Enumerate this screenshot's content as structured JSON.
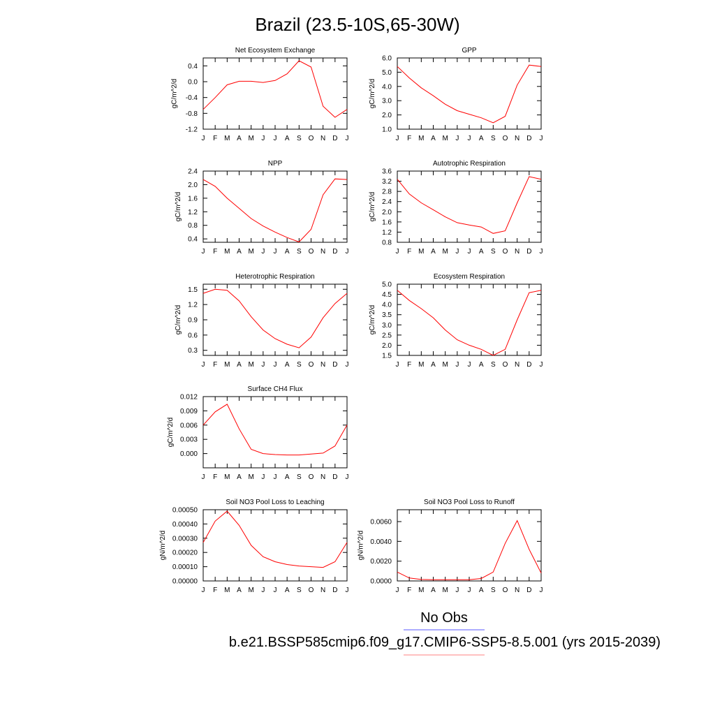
{
  "figure": {
    "title": "Brazil (23.5-10S,65-30W)",
    "legend_label": "No Obs",
    "caption": "b.e21.BSSP585cmip6.f09_g17.CMIP6-SSP5-8.5.001 (yrs 2015-2039)",
    "colors": {
      "model_line": "#ff0000",
      "legend_obs_line": "#5a5aff",
      "legend_model_line": "#ff8080",
      "axis": "#000000"
    }
  },
  "chart_data": [
    {
      "type": "line",
      "title": "Net Ecosystem Exchange",
      "ylabel": "gC/m^2/d",
      "x": [
        "J",
        "F",
        "M",
        "A",
        "M",
        "J",
        "J",
        "A",
        "S",
        "O",
        "N",
        "D",
        "J"
      ],
      "ylim": [
        -1.2,
        0.6
      ],
      "yticks": [
        "-1.2",
        "-0.8",
        "-0.4",
        "0.0",
        "0.4"
      ],
      "values": [
        -0.7,
        -0.4,
        -0.08,
        0.01,
        0.01,
        -0.02,
        0.03,
        0.2,
        0.53,
        0.37,
        -0.62,
        -0.9,
        -0.7
      ]
    },
    {
      "type": "line",
      "title": "GPP",
      "ylabel": "gC/m^2/d",
      "x": [
        "J",
        "F",
        "M",
        "A",
        "M",
        "J",
        "J",
        "A",
        "S",
        "O",
        "N",
        "D",
        "J"
      ],
      "ylim": [
        1.0,
        6.0
      ],
      "yticks": [
        "1.0",
        "2.0",
        "3.0",
        "4.0",
        "5.0",
        "6.0"
      ],
      "values": [
        5.4,
        4.6,
        3.9,
        3.35,
        2.75,
        2.3,
        2.05,
        1.8,
        1.45,
        1.9,
        4.1,
        5.5,
        5.4
      ]
    },
    {
      "type": "line",
      "title": "NPP",
      "ylabel": "gC/m^2/d",
      "x": [
        "J",
        "F",
        "M",
        "A",
        "M",
        "J",
        "J",
        "A",
        "S",
        "O",
        "N",
        "D",
        "J"
      ],
      "ylim": [
        0.3,
        2.4
      ],
      "yticks": [
        "0.4",
        "0.8",
        "1.2",
        "1.6",
        "2.0",
        "2.4"
      ],
      "values": [
        2.15,
        1.95,
        1.6,
        1.3,
        1.0,
        0.78,
        0.6,
        0.44,
        0.31,
        0.68,
        1.7,
        2.17,
        2.15
      ]
    },
    {
      "type": "line",
      "title": "Autotrophic Respiration",
      "ylabel": "gC/m^2/d",
      "x": [
        "J",
        "F",
        "M",
        "A",
        "M",
        "J",
        "J",
        "A",
        "S",
        "O",
        "N",
        "D",
        "J"
      ],
      "ylim": [
        0.8,
        3.6
      ],
      "yticks": [
        "0.8",
        "1.2",
        "1.6",
        "2.0",
        "2.4",
        "2.8",
        "3.2",
        "3.6"
      ],
      "values": [
        3.28,
        2.7,
        2.35,
        2.08,
        1.8,
        1.57,
        1.48,
        1.4,
        1.15,
        1.25,
        2.35,
        3.38,
        3.28
      ]
    },
    {
      "type": "line",
      "title": "Heterotrophic Respiration",
      "ylabel": "gC/m^2/d",
      "x": [
        "J",
        "F",
        "M",
        "A",
        "M",
        "J",
        "J",
        "A",
        "S",
        "O",
        "N",
        "D",
        "J"
      ],
      "ylim": [
        0.2,
        1.6
      ],
      "yticks": [
        "0.3",
        "0.6",
        "0.9",
        "1.2",
        "1.5"
      ],
      "values": [
        1.42,
        1.5,
        1.48,
        1.27,
        0.96,
        0.7,
        0.53,
        0.42,
        0.35,
        0.56,
        0.94,
        1.22,
        1.42
      ]
    },
    {
      "type": "line",
      "title": "Ecosystem Respiration",
      "ylabel": "gC/m^2/d",
      "x": [
        "J",
        "F",
        "M",
        "A",
        "M",
        "J",
        "J",
        "A",
        "S",
        "O",
        "N",
        "D",
        "J"
      ],
      "ylim": [
        1.5,
        5.0
      ],
      "yticks": [
        "1.5",
        "2.0",
        "2.5",
        "3.0",
        "3.5",
        "4.0",
        "4.5",
        "5.0"
      ],
      "values": [
        4.7,
        4.2,
        3.8,
        3.35,
        2.75,
        2.27,
        2.0,
        1.8,
        1.5,
        1.8,
        3.25,
        4.58,
        4.7
      ]
    },
    {
      "type": "line",
      "title": "Surface CH4 Flux",
      "ylabel": "gC/m^2/d",
      "x": [
        "J",
        "F",
        "M",
        "A",
        "M",
        "J",
        "J",
        "A",
        "S",
        "O",
        "N",
        "D",
        "J"
      ],
      "ylim": [
        -0.003,
        0.012
      ],
      "yticks": [
        "0.000",
        "0.003",
        "0.006",
        "0.009",
        "0.012"
      ],
      "values": [
        0.006,
        0.0088,
        0.0104,
        0.0052,
        0.0009,
        0.0,
        -0.0002,
        -0.0003,
        -0.0003,
        -0.0001,
        0.0001,
        0.0016,
        0.006
      ]
    },
    {
      "type": "line",
      "title": "Soil NO3 Pool Loss to Leaching",
      "ylabel": "gN/m^2/d",
      "x": [
        "J",
        "F",
        "M",
        "A",
        "M",
        "J",
        "J",
        "A",
        "S",
        "O",
        "N",
        "D",
        "J"
      ],
      "ylim": [
        0.0,
        0.0005
      ],
      "yticks": [
        "0.00000",
        "0.00010",
        "0.00020",
        "0.00030",
        "0.00040",
        "0.00050"
      ],
      "values": [
        0.00027,
        0.00042,
        0.00049,
        0.00039,
        0.00025,
        0.00017,
        0.000135,
        0.000115,
        0.000105,
        0.0001,
        9.5e-05,
        0.000135,
        0.00027
      ]
    },
    {
      "type": "line",
      "title": "Soil NO3 Pool Loss to Runoff",
      "ylabel": "gN/m^2/d",
      "x": [
        "J",
        "F",
        "M",
        "A",
        "M",
        "J",
        "J",
        "A",
        "S",
        "O",
        "N",
        "D",
        "J"
      ],
      "ylim": [
        0.0,
        0.0072
      ],
      "yticks": [
        "0.0000",
        "0.0020",
        "0.0040",
        "0.0060"
      ],
      "values": [
        0.0009,
        0.0003,
        0.00015,
        0.00012,
        0.00012,
        0.00012,
        0.00012,
        0.00025,
        0.0009,
        0.0038,
        0.0061,
        0.0032,
        0.0008
      ]
    }
  ]
}
